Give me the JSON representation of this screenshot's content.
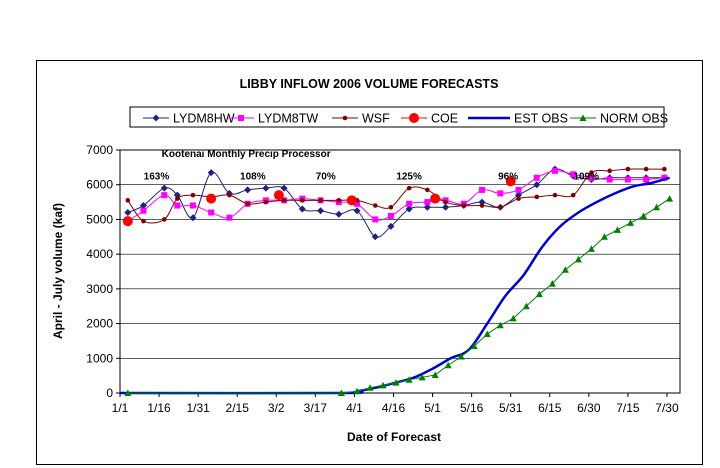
{
  "chart_data": {
    "type": "line",
    "title": "LIBBY INFLOW 2006 VOLUME FORECASTS",
    "xlabel": "Date of Forecast",
    "ylabel": "April - July volume (kaf)",
    "x_unit": "days since Jan 1, 2006",
    "xlim": [
      0,
      215
    ],
    "ylim": [
      0,
      7000
    ],
    "yticks": [
      0,
      1000,
      2000,
      3000,
      4000,
      5000,
      6000,
      7000
    ],
    "xtick_labels": [
      "1/1",
      "1/16",
      "1/31",
      "2/15",
      "3/2",
      "3/17",
      "4/1",
      "4/16",
      "5/1",
      "5/16",
      "5/31",
      "6/15",
      "6/30",
      "7/15",
      "7/30"
    ],
    "xtick_values": [
      0,
      15,
      30,
      45,
      60,
      75,
      90,
      105,
      120,
      135,
      150,
      165,
      180,
      195,
      210
    ],
    "grid": "y",
    "legend_position": "top",
    "annotations": [
      {
        "text": "Kootenai Monthly Precip Processor",
        "x": 16,
        "y": 6800
      },
      {
        "text": "163%",
        "x": 14,
        "y": 6150
      },
      {
        "text": "108%",
        "x": 51,
        "y": 6150
      },
      {
        "text": "70%",
        "x": 79,
        "y": 6150
      },
      {
        "text": "125%",
        "x": 111,
        "y": 6150
      },
      {
        "text": "96%",
        "x": 149,
        "y": 6150
      },
      {
        "text": "109%",
        "x": 179,
        "y": 6150
      }
    ],
    "series": [
      {
        "name": "LYDM8HW",
        "color": "#1a237e",
        "marker": "diamond",
        "smooth": true,
        "x": [
          3,
          9,
          17,
          22,
          28,
          35,
          42,
          49,
          56,
          63,
          70,
          77,
          84,
          91,
          98,
          104,
          111,
          118,
          125,
          132,
          139,
          146,
          153,
          160,
          167,
          174,
          181,
          188,
          195,
          202,
          209
        ],
        "y": [
          5200,
          5400,
          5900,
          5700,
          5050,
          6350,
          5750,
          5850,
          5900,
          5900,
          5300,
          5250,
          5150,
          5250,
          4500,
          4800,
          5300,
          5350,
          5350,
          5400,
          5500,
          5350,
          5700,
          6000,
          6450,
          6250,
          6150,
          6200,
          6200,
          6200,
          6200
        ]
      },
      {
        "name": "LYDM8TW",
        "color": "#ff00ff",
        "marker": "square",
        "smooth": true,
        "x": [
          3,
          9,
          17,
          22,
          28,
          35,
          42,
          49,
          56,
          63,
          70,
          77,
          84,
          91,
          98,
          104,
          111,
          118,
          125,
          132,
          139,
          146,
          153,
          160,
          167,
          174,
          181,
          188,
          195,
          202,
          209
        ],
        "y": [
          4950,
          5250,
          5700,
          5400,
          5400,
          5200,
          5050,
          5450,
          5550,
          5550,
          5600,
          5550,
          5500,
          5450,
          5000,
          5100,
          5450,
          5500,
          5550,
          5450,
          5850,
          5750,
          5850,
          6200,
          6400,
          6300,
          6200,
          6150,
          6150,
          6150,
          6200
        ]
      },
      {
        "name": "WSF",
        "color": "#800000",
        "marker": "circle",
        "smooth": true,
        "x": [
          3,
          9,
          17,
          22,
          28,
          35,
          42,
          49,
          56,
          63,
          70,
          77,
          84,
          91,
          98,
          104,
          111,
          118,
          125,
          132,
          139,
          146,
          153,
          160,
          167,
          174,
          181,
          188,
          195,
          202,
          209
        ],
        "y": [
          5550,
          4950,
          5000,
          5600,
          5700,
          5650,
          5700,
          5450,
          5500,
          5550,
          5550,
          5550,
          5550,
          5550,
          5400,
          5350,
          5900,
          5850,
          5500,
          5400,
          5400,
          5350,
          5600,
          5650,
          5700,
          5700,
          6350,
          6400,
          6450,
          6450,
          6450
        ]
      },
      {
        "name": "COE",
        "color": "#ff0000",
        "marker": "bigcircle",
        "smooth": false,
        "line": false,
        "x": [
          3,
          35,
          61,
          89,
          121,
          150
        ],
        "y": [
          4950,
          5600,
          5700,
          5550,
          5600,
          6100
        ]
      },
      {
        "name": "EST OBS",
        "color": "#0000cc",
        "marker": "none",
        "smooth": true,
        "width": 2.5,
        "x": [
          0,
          85,
          91,
          98,
          106,
          113,
          120,
          127,
          134,
          141,
          148,
          155,
          162,
          169,
          176,
          183,
          190,
          197,
          204,
          211
        ],
        "y": [
          0,
          0,
          50,
          150,
          300,
          450,
          700,
          1000,
          1250,
          2000,
          2800,
          3400,
          4200,
          4800,
          5200,
          5500,
          5750,
          5950,
          6050,
          6200
        ]
      },
      {
        "name": "NORM OBS",
        "color": "#008000",
        "marker": "triangle",
        "smooth": false,
        "x": [
          3,
          85,
          91,
          96,
          101,
          106,
          111,
          116,
          121,
          126,
          131,
          136,
          141,
          146,
          151,
          156,
          161,
          166,
          171,
          176,
          181,
          186,
          191,
          196,
          201,
          206,
          211
        ],
        "y": [
          0,
          0,
          50,
          150,
          220,
          300,
          380,
          450,
          520,
          800,
          1050,
          1350,
          1700,
          1950,
          2150,
          2500,
          2850,
          3150,
          3550,
          3850,
          4150,
          4500,
          4700,
          4900,
          5100,
          5350,
          5600
        ]
      }
    ]
  }
}
